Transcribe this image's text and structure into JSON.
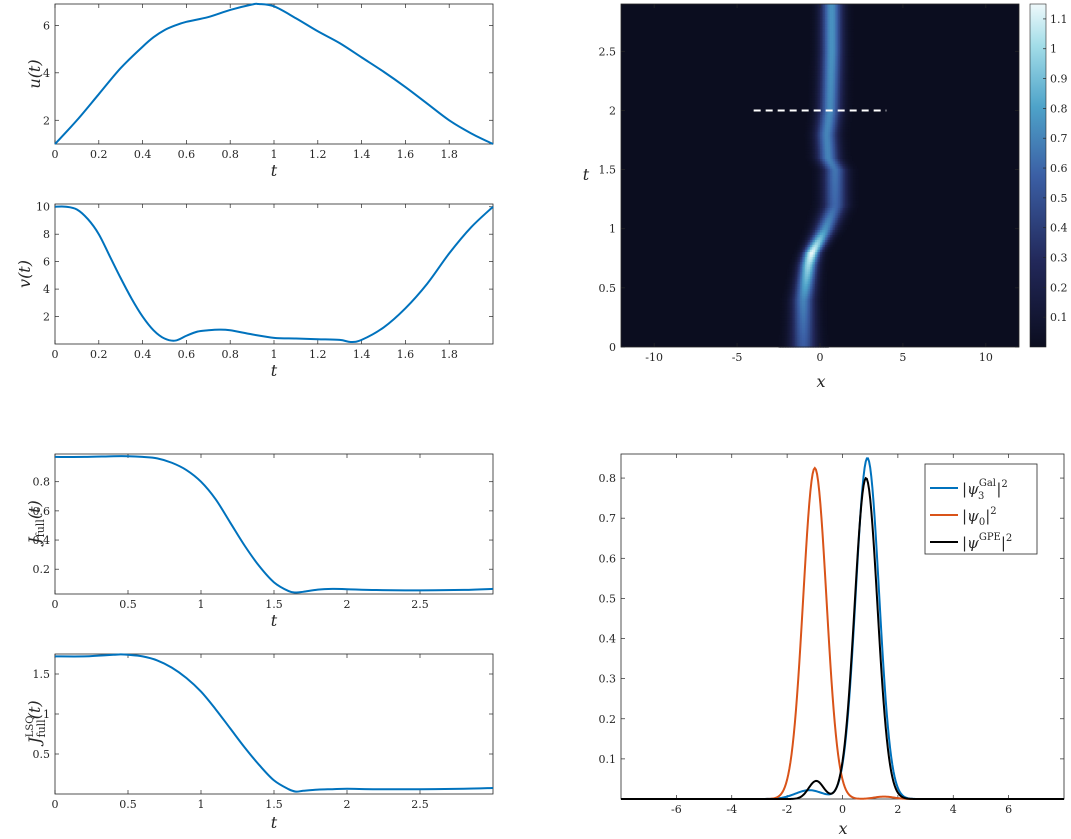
{
  "chart_data": [
    {
      "type": "line",
      "xlabel": "t",
      "ylabel": "u(t)",
      "xlim": [
        0,
        2
      ],
      "ylim": [
        1,
        6.9
      ],
      "xticks": [
        "0",
        "0.2",
        "0.4",
        "0.6",
        "0.8",
        "1",
        "1.2",
        "1.4",
        "1.6",
        "1.8"
      ],
      "yticks": [
        "2",
        "4",
        "6"
      ],
      "color": "#0072BD",
      "series": [
        {
          "x": [
            0,
            0.1,
            0.2,
            0.3,
            0.4,
            0.45,
            0.5,
            0.55,
            0.6,
            0.7,
            0.8,
            0.9,
            0.93,
            1.0,
            1.1,
            1.2,
            1.3,
            1.4,
            1.5,
            1.6,
            1.7,
            1.8,
            1.9,
            2.0
          ],
          "values": [
            1.0,
            2.0,
            3.1,
            4.2,
            5.1,
            5.5,
            5.8,
            6.0,
            6.15,
            6.35,
            6.65,
            6.88,
            6.9,
            6.8,
            6.3,
            5.75,
            5.25,
            4.65,
            4.05,
            3.4,
            2.7,
            2.0,
            1.45,
            1.0
          ]
        }
      ]
    },
    {
      "type": "line",
      "xlabel": "t",
      "ylabel": "v(t)",
      "xlim": [
        0,
        2
      ],
      "ylim": [
        0,
        10.2
      ],
      "xticks": [
        "0",
        "0.2",
        "0.4",
        "0.6",
        "0.8",
        "1",
        "1.2",
        "1.4",
        "1.6",
        "1.8"
      ],
      "yticks": [
        "2",
        "4",
        "6",
        "8",
        "10"
      ],
      "color": "#0072BD",
      "series": [
        {
          "x": [
            0,
            0.05,
            0.1,
            0.15,
            0.2,
            0.25,
            0.3,
            0.35,
            0.4,
            0.45,
            0.5,
            0.55,
            0.6,
            0.65,
            0.7,
            0.75,
            0.8,
            0.9,
            1.0,
            1.1,
            1.2,
            1.3,
            1.35,
            1.4,
            1.5,
            1.6,
            1.7,
            1.8,
            1.9,
            2.0
          ],
          "values": [
            10.0,
            10.0,
            9.8,
            9.1,
            8.0,
            6.4,
            4.8,
            3.3,
            2.0,
            1.0,
            0.4,
            0.25,
            0.6,
            0.9,
            1.0,
            1.05,
            1.0,
            0.7,
            0.45,
            0.4,
            0.35,
            0.3,
            0.15,
            0.3,
            1.2,
            2.6,
            4.4,
            6.6,
            8.5,
            10.0
          ]
        }
      ]
    },
    {
      "type": "line",
      "xlabel": "t",
      "ylabel": "J_full(t)",
      "xlim": [
        0,
        3
      ],
      "ylim": [
        0.03,
        0.99
      ],
      "xticks": [
        "0",
        "0.5",
        "1",
        "1.5",
        "2",
        "2.5"
      ],
      "yticks": [
        "0.2",
        "0.4",
        "0.6",
        "0.8"
      ],
      "color": "#0072BD",
      "series": [
        {
          "x": [
            0,
            0.2,
            0.4,
            0.5,
            0.6,
            0.7,
            0.8,
            0.9,
            1.0,
            1.1,
            1.2,
            1.3,
            1.4,
            1.5,
            1.6,
            1.65,
            1.7,
            1.8,
            1.9,
            2.0,
            2.2,
            2.5,
            2.8,
            3.0
          ],
          "values": [
            0.97,
            0.97,
            0.975,
            0.975,
            0.97,
            0.96,
            0.93,
            0.88,
            0.8,
            0.68,
            0.52,
            0.36,
            0.22,
            0.11,
            0.05,
            0.04,
            0.045,
            0.06,
            0.065,
            0.063,
            0.057,
            0.055,
            0.058,
            0.065
          ]
        }
      ]
    },
    {
      "type": "line",
      "xlabel": "t",
      "ylabel": "J_full^LSQ(t)",
      "xlim": [
        0,
        3
      ],
      "ylim": [
        0,
        1.75
      ],
      "xticks": [
        "0",
        "0.5",
        "1",
        "1.5",
        "2",
        "2.5"
      ],
      "yticks": [
        "0.5",
        "1",
        "1.5"
      ],
      "color": "#0072BD",
      "series": [
        {
          "x": [
            0,
            0.2,
            0.3,
            0.4,
            0.45,
            0.5,
            0.6,
            0.7,
            0.8,
            0.9,
            1.0,
            1.1,
            1.2,
            1.3,
            1.4,
            1.5,
            1.6,
            1.65,
            1.7,
            1.8,
            1.9,
            2.0,
            2.2,
            2.5,
            2.8,
            3.0
          ],
          "values": [
            1.72,
            1.72,
            1.73,
            1.74,
            1.745,
            1.74,
            1.72,
            1.67,
            1.58,
            1.45,
            1.28,
            1.06,
            0.82,
            0.58,
            0.36,
            0.17,
            0.06,
            0.03,
            0.04,
            0.055,
            0.06,
            0.065,
            0.06,
            0.06,
            0.065,
            0.075
          ]
        }
      ]
    },
    {
      "type": "heatmap",
      "xlabel": "x",
      "ylabel": "t",
      "xlim": [
        -12,
        12
      ],
      "ylim": [
        0,
        2.9
      ],
      "xticks": [
        "-10",
        "-5",
        "0",
        "5",
        "10"
      ],
      "yticks": [
        "0",
        "0.5",
        "1",
        "1.5",
        "2",
        "2.5"
      ],
      "colorbar_ticks": [
        "0.1",
        "0.2",
        "0.3",
        "0.4",
        "0.5",
        "0.6",
        "0.7",
        "0.8",
        "0.9",
        "1",
        "1.1"
      ],
      "colorbar_range": [
        0,
        1.15
      ],
      "ridge_t": [
        0,
        0.4,
        0.7,
        0.8,
        1.0,
        1.2,
        1.5,
        1.6,
        1.8,
        2.0,
        2.5,
        2.9
      ],
      "ridge_x": [
        -1.0,
        -1.0,
        -0.7,
        -0.5,
        0.3,
        0.9,
        0.9,
        0.5,
        0.4,
        0.6,
        0.7,
        0.7
      ],
      "ridge_peak": [
        0.55,
        0.7,
        1.0,
        1.15,
        0.75,
        0.6,
        0.65,
        0.7,
        0.7,
        0.72,
        0.75,
        0.75
      ],
      "marker_line": {
        "t": 2,
        "x": [
          -4,
          4
        ]
      }
    },
    {
      "type": "line",
      "xlabel": "x",
      "ylabel": "",
      "xlim": [
        -8,
        8
      ],
      "ylim": [
        0,
        0.86
      ],
      "xticks": [
        "-6",
        "-4",
        "-2",
        "0",
        "2",
        "4",
        "6"
      ],
      "yticks": [
        "0.1",
        "0.2",
        "0.3",
        "0.4",
        "0.5",
        "0.6",
        "0.7",
        "0.8"
      ],
      "legend_position": "top-right",
      "series": [
        {
          "name": "|ψ_3^Gal|^2",
          "color": "#0072BD",
          "shape": "gauss2",
          "params": [
            0.85,
            0.9,
            0.42,
            0.022,
            -1.2,
            0.5
          ]
        },
        {
          "name": "|ψ_0|^2",
          "color": "#D95319",
          "shape": "gauss2",
          "params": [
            0.825,
            -1.0,
            0.42,
            0.006,
            1.5,
            0.35
          ]
        },
        {
          "name": "|ψ^GPE|^2",
          "color": "#000000",
          "shape": "gauss2",
          "params": [
            0.8,
            0.85,
            0.41,
            0.045,
            -0.95,
            0.27
          ]
        }
      ]
    }
  ],
  "legend": [
    {
      "base": "|ψ",
      "sub": "3",
      "sup": "Gal",
      "tail": "|",
      "pow": "2"
    },
    {
      "base": "|ψ",
      "sub": "0",
      "sup": "",
      "tail": "|",
      "pow": "2"
    },
    {
      "base": "|ψ",
      "sub": "",
      "sup": "GPE",
      "tail": "|",
      "pow": "2"
    }
  ],
  "ylabels": {
    "u": {
      "main": "u(t)"
    },
    "v": {
      "main": "v(t)"
    },
    "jfull": {
      "main": "J",
      "sub": "full",
      "tail": "(t)"
    },
    "jlsq": {
      "main": "J",
      "sub": "full",
      "sup": "LSQ",
      "tail": "(t)"
    }
  }
}
